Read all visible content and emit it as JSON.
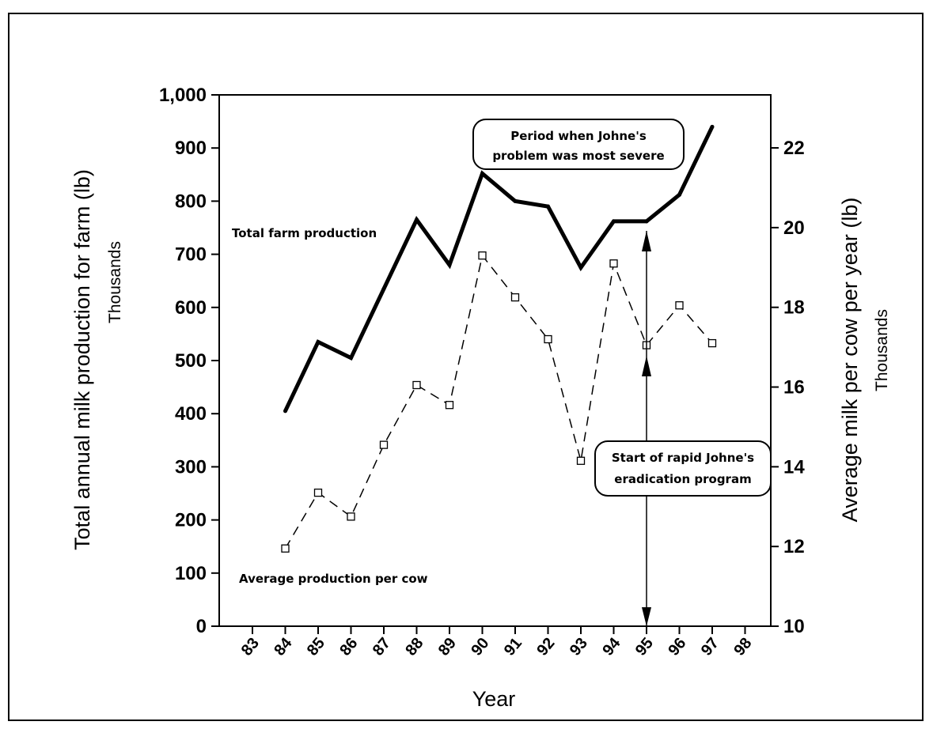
{
  "chart_data": {
    "type": "line",
    "xlabel": "Year",
    "x_ticks": [
      "83",
      "84",
      "85",
      "86",
      "87",
      "88",
      "89",
      "90",
      "91",
      "92",
      "93",
      "94",
      "95",
      "96",
      "97",
      "98"
    ],
    "y_left": {
      "label": "Total annual milk production for farm (lb)",
      "sublabel": "Thousands",
      "range": [
        0,
        1000
      ],
      "ticks": [
        "0",
        "100",
        "200",
        "300",
        "400",
        "500",
        "600",
        "700",
        "800",
        "900",
        "1,000"
      ]
    },
    "y_right": {
      "label": "Average milk per cow per year (lb)",
      "sublabel": "Thousands",
      "range": [
        10,
        23.33
      ],
      "ticks": [
        "10",
        "12",
        "14",
        "16",
        "18",
        "20",
        "22"
      ]
    },
    "series": [
      {
        "name": "Total farm production",
        "axis": "left",
        "style": "solid-bold",
        "x": [
          84,
          85,
          86,
          87,
          88,
          89,
          90,
          91,
          92,
          93,
          94,
          95,
          96,
          97
        ],
        "values": [
          405,
          535,
          505,
          635,
          765,
          680,
          852,
          800,
          790,
          675,
          762,
          762,
          812,
          940
        ]
      },
      {
        "name": "Average production per cow",
        "axis": "right",
        "style": "dashed-square-markers",
        "x": [
          84,
          85,
          86,
          87,
          88,
          89,
          90,
          91,
          92,
          93,
          94,
          95,
          96,
          97
        ],
        "values": [
          11.95,
          13.35,
          12.75,
          14.55,
          16.05,
          15.55,
          19.3,
          18.25,
          17.2,
          14.15,
          19.1,
          17.05,
          18.05,
          17.1
        ]
      }
    ],
    "annotations": {
      "callout_top": [
        "Period when Johne's",
        "problem was most severe"
      ],
      "callout_bottom": [
        "Start of rapid Johne's",
        "eradication program"
      ],
      "marker_year": 95
    },
    "grid": false,
    "legend": "none"
  }
}
